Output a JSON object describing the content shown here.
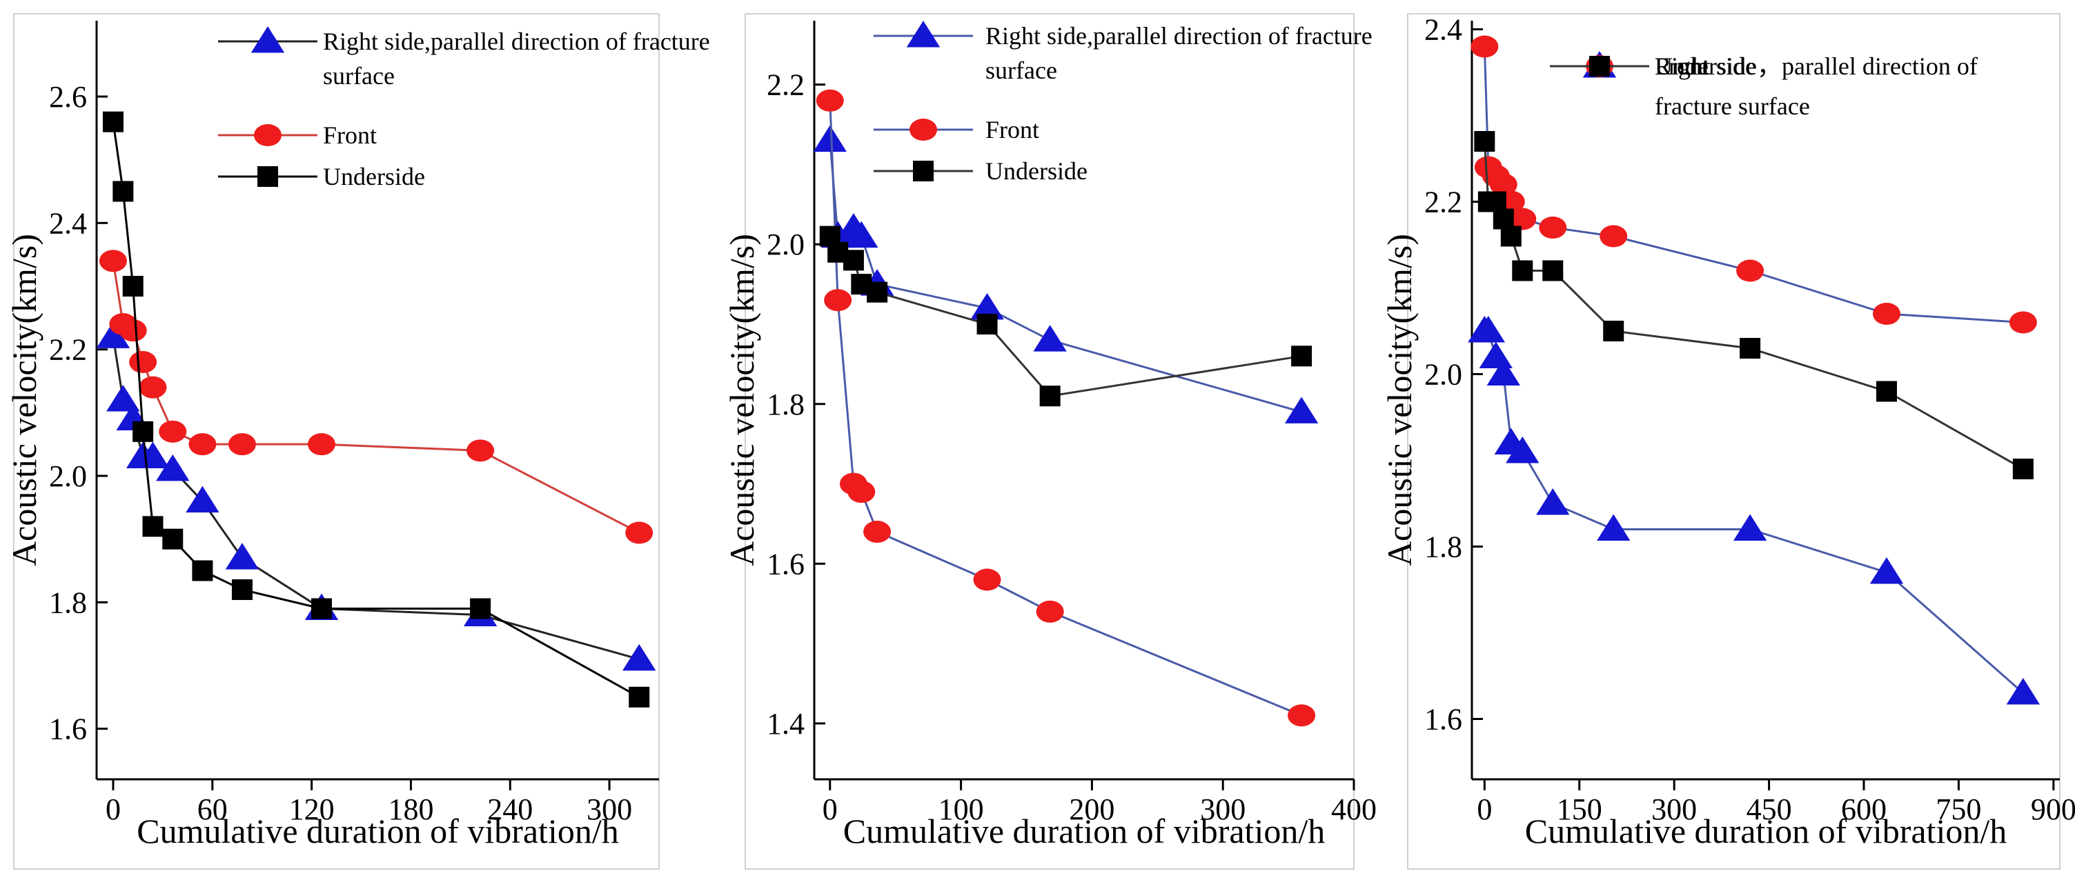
{
  "chart_data": [
    {
      "type": "line",
      "xlabel": "Cumulative duration of vibration/h",
      "ylabel": "Acoustic velocity(km/s)",
      "xlim": [
        -10,
        330
      ],
      "ylim": [
        1.52,
        2.72
      ],
      "xticks": [
        0,
        60,
        120,
        180,
        240,
        300
      ],
      "yticks": [
        1.6,
        1.8,
        2.0,
        2.2,
        2.4,
        2.6
      ],
      "ytick_labels": [
        "1.6",
        "1.8",
        "2.0",
        "2.2",
        "2.4",
        "2.6"
      ],
      "legend": {
        "position": "top-right"
      },
      "series": [
        {
          "name": "Right side,parallel direction of fracture surface",
          "name_lines": [
            "Right side,parallel direction of fracture",
            "surface"
          ],
          "marker": "triangle",
          "color": "#1515d4",
          "line_color": "#222222",
          "x": [
            0,
            6,
            12,
            18,
            24,
            36,
            54,
            78,
            126,
            222,
            318
          ],
          "y": [
            2.22,
            2.12,
            2.09,
            2.03,
            2.03,
            2.01,
            1.96,
            1.87,
            1.79,
            1.78,
            1.71
          ]
        },
        {
          "name": "Front",
          "name_lines": [
            "Front"
          ],
          "marker": "circle",
          "color": "#ee1c1c",
          "line_color": "#d0403a",
          "x": [
            0,
            6,
            12,
            18,
            24,
            36,
            54,
            78,
            126,
            222,
            318
          ],
          "y": [
            2.34,
            2.24,
            2.23,
            2.18,
            2.14,
            2.07,
            2.05,
            2.05,
            2.05,
            2.04,
            1.91
          ]
        },
        {
          "name": "Underside",
          "name_lines": [
            "Underside"
          ],
          "marker": "square",
          "color": "#000000",
          "line_color": "#000000",
          "x": [
            0,
            6,
            12,
            18,
            24,
            36,
            54,
            78,
            126,
            222,
            318
          ],
          "y": [
            2.56,
            2.45,
            2.3,
            2.07,
            1.92,
            1.9,
            1.85,
            1.82,
            1.79,
            1.79,
            1.65
          ]
        }
      ]
    },
    {
      "type": "line",
      "xlabel": "Cumulative duration of vibration/h",
      "ylabel": "Acoustic velocity(km/s)",
      "xlim": [
        -12,
        400
      ],
      "ylim": [
        1.33,
        2.28
      ],
      "xticks": [
        0,
        100,
        200,
        300,
        400
      ],
      "yticks": [
        1.4,
        1.6,
        1.8,
        2.0,
        2.2
      ],
      "ytick_labels": [
        "1.4",
        "1.6",
        "1.8",
        "2.0",
        "2.2"
      ],
      "legend": {
        "position": "top-right"
      },
      "series": [
        {
          "name": "Right side,parallel direction of fracture surface",
          "name_lines": [
            "Right side,parallel direction of fracture",
            "surface"
          ],
          "marker": "triangle",
          "color": "#1515d4",
          "line_color": "#4a5aa8",
          "x": [
            0,
            6,
            18,
            24,
            36,
            120,
            168,
            360
          ],
          "y": [
            2.13,
            2.01,
            2.02,
            2.01,
            1.95,
            1.92,
            1.88,
            1.79
          ]
        },
        {
          "name": "Front",
          "name_lines": [
            "Front"
          ],
          "marker": "circle",
          "color": "#ee1c1c",
          "line_color": "#4a5aa8",
          "x": [
            0,
            6,
            18,
            24,
            36,
            120,
            168,
            360
          ],
          "y": [
            2.18,
            1.93,
            1.7,
            1.69,
            1.64,
            1.58,
            1.54,
            1.41
          ]
        },
        {
          "name": "Underside",
          "name_lines": [
            "Underside"
          ],
          "marker": "square",
          "color": "#000000",
          "line_color": "#333333",
          "x": [
            0,
            6,
            18,
            24,
            36,
            120,
            168,
            360
          ],
          "y": [
            2.01,
            1.99,
            1.98,
            1.95,
            1.94,
            1.9,
            1.81,
            1.86
          ]
        }
      ]
    },
    {
      "type": "line",
      "xlabel": "Cumulative duration of vibration/h",
      "ylabel": "Acoustic velocity(km/s)",
      "xlim": [
        -20,
        910
      ],
      "ylim": [
        1.53,
        2.41
      ],
      "xticks": [
        0,
        150,
        300,
        450,
        600,
        750,
        900
      ],
      "yticks": [
        1.6,
        1.8,
        2.0,
        2.2,
        2.4
      ],
      "ytick_labels": [
        "1.6",
        "1.8",
        "2.0",
        "2.2",
        "2.4"
      ],
      "legend": {
        "position": "top-right"
      },
      "series": [
        {
          "name": "Right side",
          "name_lines": [
            "Right side"
          ],
          "marker": "triangle",
          "color": "#1515d4",
          "line_color": "#4a5aa8",
          "x": [
            0,
            6,
            18,
            30,
            42,
            60,
            108,
            204,
            420,
            636,
            852
          ],
          "y": [
            2.05,
            2.05,
            2.02,
            2.0,
            1.92,
            1.91,
            1.85,
            1.82,
            1.82,
            1.77,
            1.63
          ]
        },
        {
          "name": "Front",
          "name_lines": [
            "Front"
          ],
          "marker": "circle",
          "color": "#ee1c1c",
          "line_color": "#4a5aa8",
          "x": [
            0,
            6,
            18,
            30,
            42,
            60,
            108,
            204,
            420,
            636,
            852
          ],
          "y": [
            2.38,
            2.24,
            2.23,
            2.22,
            2.2,
            2.18,
            2.17,
            2.16,
            2.12,
            2.07,
            2.06
          ]
        },
        {
          "name": "Underside，parallel direction of fracture surface",
          "name_lines": [
            "Underside，parallel direction of",
            "fracture surface"
          ],
          "marker": "square",
          "color": "#000000",
          "line_color": "#333333",
          "x": [
            0,
            6,
            18,
            30,
            42,
            60,
            108,
            204,
            420,
            636,
            852
          ],
          "y": [
            2.27,
            2.2,
            2.2,
            2.18,
            2.16,
            2.12,
            2.12,
            2.05,
            2.03,
            1.98,
            1.89
          ]
        }
      ]
    }
  ]
}
